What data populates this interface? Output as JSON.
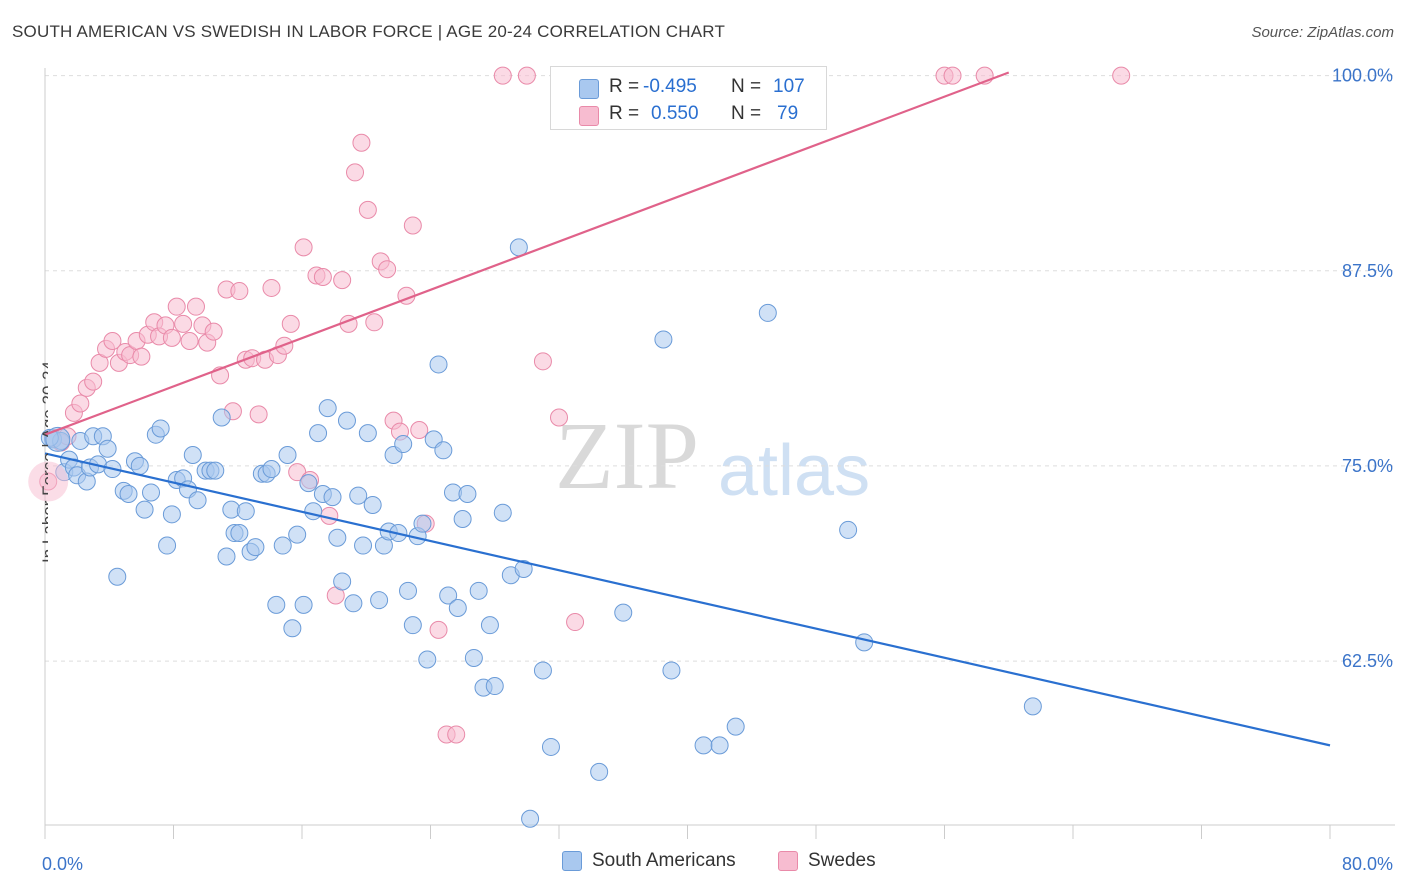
{
  "title": "SOUTH AMERICAN VS SWEDISH IN LABOR FORCE | AGE 20-24 CORRELATION CHART",
  "source": "Source: ZipAtlas.com",
  "watermark": {
    "zip": "ZIP",
    "atlas": "atlas"
  },
  "stats": {
    "rows": [
      {
        "r_label": "R =",
        "r": "-0.495",
        "n_label": "N =",
        "n": "107"
      },
      {
        "r_label": "R =",
        "r": "0.550",
        "n_label": "N =",
        "n": "79"
      }
    ]
  },
  "legend": {
    "items": [
      "South Americans",
      "Swedes"
    ]
  },
  "colors": {
    "blue_fill": "#a9c8ef",
    "blue_stroke": "#6a9bd8",
    "blue_line": "#2a70d0",
    "pink_fill": "#f7bcd0",
    "pink_stroke": "#e98aa9",
    "pink_line": "#e0628a",
    "tick_label": "#3b74c9",
    "grid": "#dddddd"
  },
  "chart_data": {
    "type": "scatter",
    "title": "SOUTH AMERICAN VS SWEDISH IN LABOR FORCE | AGE 20-24 CORRELATION CHART",
    "xlabel": "",
    "ylabel": "In Labor Force | Age 20-24",
    "xlim": [
      0,
      80
    ],
    "ylim": [
      52,
      101
    ],
    "x_tick_labels": [
      "0.0%",
      "80.0%"
    ],
    "y_ticks": [
      62.5,
      75.0,
      87.5,
      100.0
    ],
    "y_tick_labels": [
      "62.5%",
      "75.0%",
      "87.5%",
      "100.0%"
    ],
    "grid": true,
    "legend_position": "bottom",
    "series": [
      {
        "name": "South Americans",
        "r": -0.495,
        "n": 107,
        "trend": {
          "x": [
            0,
            80
          ],
          "y": [
            75.8,
            57.1
          ]
        },
        "points": [
          [
            0.5,
            76.7
          ],
          [
            1.0,
            76.6
          ],
          [
            1.2,
            74.6
          ],
          [
            1.5,
            75.4
          ],
          [
            1.8,
            74.9
          ],
          [
            2.0,
            74.4
          ],
          [
            2.2,
            76.6
          ],
          [
            2.6,
            74.0
          ],
          [
            2.8,
            74.9
          ],
          [
            3.0,
            76.9
          ],
          [
            3.3,
            75.1
          ],
          [
            3.6,
            76.9
          ],
          [
            3.9,
            76.1
          ],
          [
            4.2,
            74.8
          ],
          [
            4.5,
            67.9
          ],
          [
            4.9,
            73.4
          ],
          [
            5.2,
            73.2
          ],
          [
            5.6,
            75.3
          ],
          [
            5.9,
            75.0
          ],
          [
            6.2,
            72.2
          ],
          [
            6.6,
            73.3
          ],
          [
            6.9,
            77.0
          ],
          [
            7.2,
            77.4
          ],
          [
            7.6,
            69.9
          ],
          [
            7.9,
            71.9
          ],
          [
            8.2,
            74.1
          ],
          [
            8.6,
            74.2
          ],
          [
            8.9,
            73.5
          ],
          [
            9.2,
            75.7
          ],
          [
            9.5,
            72.8
          ],
          [
            10.0,
            74.7
          ],
          [
            10.3,
            74.7
          ],
          [
            10.6,
            74.7
          ],
          [
            11.0,
            78.1
          ],
          [
            11.3,
            69.2
          ],
          [
            11.6,
            72.2
          ],
          [
            11.8,
            70.7
          ],
          [
            12.1,
            70.7
          ],
          [
            12.5,
            72.1
          ],
          [
            12.8,
            69.5
          ],
          [
            13.1,
            69.8
          ],
          [
            13.5,
            74.5
          ],
          [
            13.8,
            74.5
          ],
          [
            14.1,
            74.8
          ],
          [
            14.4,
            66.1
          ],
          [
            14.8,
            69.9
          ],
          [
            15.1,
            75.7
          ],
          [
            15.4,
            64.6
          ],
          [
            15.7,
            70.6
          ],
          [
            16.1,
            66.1
          ],
          [
            16.4,
            73.9
          ],
          [
            16.7,
            72.1
          ],
          [
            17.0,
            77.1
          ],
          [
            17.3,
            73.2
          ],
          [
            17.6,
            78.7
          ],
          [
            17.9,
            73.0
          ],
          [
            18.2,
            70.4
          ],
          [
            18.5,
            67.6
          ],
          [
            18.8,
            77.9
          ],
          [
            19.2,
            66.2
          ],
          [
            19.5,
            73.1
          ],
          [
            19.8,
            69.9
          ],
          [
            20.1,
            77.1
          ],
          [
            20.4,
            72.5
          ],
          [
            20.8,
            66.4
          ],
          [
            21.1,
            69.9
          ],
          [
            21.4,
            70.8
          ],
          [
            21.7,
            75.7
          ],
          [
            22.0,
            70.7
          ],
          [
            22.3,
            76.4
          ],
          [
            22.6,
            67.0
          ],
          [
            22.9,
            64.8
          ],
          [
            23.2,
            70.5
          ],
          [
            23.5,
            71.3
          ],
          [
            23.8,
            62.6
          ],
          [
            24.2,
            76.7
          ],
          [
            24.5,
            81.5
          ],
          [
            24.8,
            76.0
          ],
          [
            25.1,
            66.7
          ],
          [
            25.4,
            73.3
          ],
          [
            25.7,
            65.9
          ],
          [
            26.0,
            71.6
          ],
          [
            26.3,
            73.2
          ],
          [
            26.7,
            62.7
          ],
          [
            27.0,
            67.0
          ],
          [
            27.3,
            60.8
          ],
          [
            27.7,
            64.8
          ],
          [
            28.0,
            60.9
          ],
          [
            28.5,
            72.0
          ],
          [
            29.0,
            68.0
          ],
          [
            29.5,
            89.0
          ],
          [
            29.8,
            68.4
          ],
          [
            30.2,
            52.4
          ],
          [
            31.0,
            61.9
          ],
          [
            31.5,
            57.0
          ],
          [
            34.5,
            55.4
          ],
          [
            36.0,
            65.6
          ],
          [
            38.5,
            83.1
          ],
          [
            39.0,
            61.9
          ],
          [
            41.0,
            57.1
          ],
          [
            42.0,
            57.1
          ],
          [
            43.0,
            58.3
          ],
          [
            45.0,
            84.8
          ],
          [
            50.0,
            70.9
          ],
          [
            51.0,
            63.7
          ],
          [
            61.5,
            59.6
          ],
          [
            0.3,
            76.8
          ]
        ]
      },
      {
        "name": "Swedes",
        "r": 0.55,
        "n": 79,
        "trend": {
          "x": [
            0,
            60
          ],
          "y": [
            77.0,
            100.2
          ]
        },
        "points": [
          [
            0.2,
            74.0
          ],
          [
            0.5,
            76.8
          ],
          [
            1.0,
            76.5
          ],
          [
            1.4,
            76.9
          ],
          [
            1.8,
            78.4
          ],
          [
            2.2,
            79.0
          ],
          [
            2.6,
            80.0
          ],
          [
            3.0,
            80.4
          ],
          [
            3.4,
            81.6
          ],
          [
            3.8,
            82.5
          ],
          [
            4.2,
            83.0
          ],
          [
            4.6,
            81.6
          ],
          [
            5.0,
            82.3
          ],
          [
            5.3,
            82.1
          ],
          [
            5.7,
            83.0
          ],
          [
            6.0,
            82.0
          ],
          [
            6.4,
            83.4
          ],
          [
            6.8,
            84.2
          ],
          [
            7.1,
            83.3
          ],
          [
            7.5,
            84.0
          ],
          [
            7.9,
            83.2
          ],
          [
            8.2,
            85.2
          ],
          [
            8.6,
            84.1
          ],
          [
            9.0,
            83.0
          ],
          [
            9.4,
            85.2
          ],
          [
            9.8,
            84.0
          ],
          [
            10.1,
            82.9
          ],
          [
            10.5,
            83.6
          ],
          [
            10.9,
            80.8
          ],
          [
            11.3,
            86.3
          ],
          [
            11.7,
            78.5
          ],
          [
            12.1,
            86.2
          ],
          [
            12.5,
            81.8
          ],
          [
            12.9,
            81.9
          ],
          [
            13.3,
            78.3
          ],
          [
            13.7,
            81.8
          ],
          [
            14.1,
            86.4
          ],
          [
            14.5,
            82.1
          ],
          [
            14.9,
            82.7
          ],
          [
            15.3,
            84.1
          ],
          [
            15.7,
            74.6
          ],
          [
            16.1,
            89.0
          ],
          [
            16.5,
            74.1
          ],
          [
            16.9,
            87.2
          ],
          [
            17.3,
            87.1
          ],
          [
            17.7,
            71.8
          ],
          [
            18.1,
            66.7
          ],
          [
            18.5,
            86.9
          ],
          [
            18.9,
            84.1
          ],
          [
            19.3,
            93.8
          ],
          [
            19.7,
            95.7
          ],
          [
            20.1,
            91.4
          ],
          [
            20.5,
            84.2
          ],
          [
            20.9,
            88.1
          ],
          [
            21.3,
            87.6
          ],
          [
            21.7,
            77.9
          ],
          [
            22.1,
            77.2
          ],
          [
            22.5,
            85.9
          ],
          [
            22.9,
            90.4
          ],
          [
            23.3,
            77.3
          ],
          [
            23.7,
            71.3
          ],
          [
            24.5,
            64.5
          ],
          [
            25.0,
            57.8
          ],
          [
            25.6,
            57.8
          ],
          [
            28.5,
            100.0
          ],
          [
            30.0,
            100.0
          ],
          [
            31.0,
            81.7
          ],
          [
            32.0,
            78.1
          ],
          [
            33.0,
            65.0
          ],
          [
            35.0,
            100.0
          ],
          [
            37.0,
            100.0
          ],
          [
            38.5,
            100.0
          ],
          [
            40.0,
            100.0
          ],
          [
            44.0,
            100.0
          ],
          [
            48.0,
            100.0
          ],
          [
            56.0,
            100.0
          ],
          [
            56.5,
            100.0
          ],
          [
            58.5,
            100.0
          ],
          [
            67.0,
            100.0
          ]
        ]
      }
    ]
  }
}
